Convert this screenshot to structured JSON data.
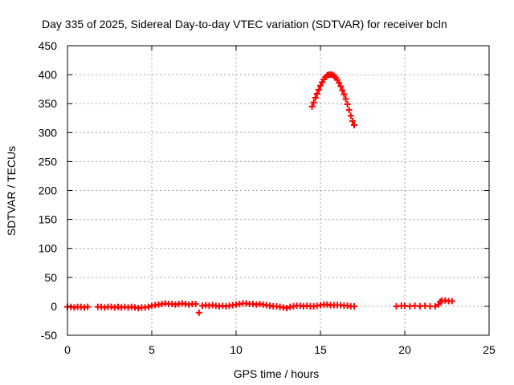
{
  "chart_data": {
    "type": "scatter",
    "title": "Day 335 of 2025, Sidereal Day-to-day VTEC variation (SDTVAR) for receiver bcln",
    "xlabel": "GPS time / hours",
    "ylabel": "SDTVAR / TECUs",
    "xlim": [
      0,
      25
    ],
    "ylim": [
      -50,
      450
    ],
    "xticks": [
      0,
      5,
      10,
      15,
      20,
      25
    ],
    "yticks": [
      -50,
      0,
      50,
      100,
      150,
      200,
      250,
      300,
      350,
      400,
      450
    ],
    "grid": true,
    "legend": "none",
    "marker": "plus",
    "colors": {
      "series": "#ff0000",
      "axis": "#000000",
      "grid": "#a0a0a0"
    },
    "series": [
      {
        "name": "SDTVAR",
        "points": [
          [
            0.0,
            -1
          ],
          [
            0.2,
            -1
          ],
          [
            0.4,
            -2
          ],
          [
            0.6,
            -1
          ],
          [
            0.8,
            -1
          ],
          [
            1.0,
            -2
          ],
          [
            1.2,
            -1
          ],
          [
            1.8,
            -1
          ],
          [
            2.0,
            -1
          ],
          [
            2.2,
            -2
          ],
          [
            2.4,
            -1
          ],
          [
            2.6,
            -1
          ],
          [
            2.8,
            -2
          ],
          [
            3.0,
            -1
          ],
          [
            3.2,
            -2
          ],
          [
            3.4,
            -1
          ],
          [
            3.6,
            -2
          ],
          [
            3.8,
            -1
          ],
          [
            4.0,
            -2
          ],
          [
            4.2,
            -3
          ],
          [
            4.4,
            -2
          ],
          [
            4.6,
            -2
          ],
          [
            4.8,
            -1
          ],
          [
            5.0,
            1
          ],
          [
            5.2,
            2
          ],
          [
            5.4,
            3
          ],
          [
            5.6,
            4
          ],
          [
            5.8,
            5
          ],
          [
            6.0,
            4
          ],
          [
            6.2,
            4
          ],
          [
            6.4,
            3
          ],
          [
            6.6,
            4
          ],
          [
            6.8,
            5
          ],
          [
            7.0,
            4
          ],
          [
            7.2,
            3
          ],
          [
            7.4,
            4
          ],
          [
            7.6,
            4
          ],
          [
            7.8,
            -11
          ],
          [
            8.0,
            1
          ],
          [
            8.2,
            2
          ],
          [
            8.4,
            1
          ],
          [
            8.6,
            2
          ],
          [
            8.8,
            1
          ],
          [
            9.0,
            0
          ],
          [
            9.2,
            1
          ],
          [
            9.4,
            0
          ],
          [
            9.6,
            1
          ],
          [
            9.8,
            2
          ],
          [
            10.0,
            3
          ],
          [
            10.2,
            4
          ],
          [
            10.4,
            5
          ],
          [
            10.6,
            5
          ],
          [
            10.8,
            4
          ],
          [
            11.0,
            4
          ],
          [
            11.2,
            3
          ],
          [
            11.4,
            4
          ],
          [
            11.6,
            3
          ],
          [
            11.8,
            2
          ],
          [
            12.0,
            1
          ],
          [
            12.2,
            0
          ],
          [
            12.4,
            0
          ],
          [
            12.6,
            -1
          ],
          [
            12.8,
            -2
          ],
          [
            13.0,
            -3
          ],
          [
            13.2,
            -1
          ],
          [
            13.4,
            0
          ],
          [
            13.6,
            1
          ],
          [
            13.8,
            1
          ],
          [
            14.0,
            0
          ],
          [
            14.2,
            1
          ],
          [
            14.4,
            0
          ],
          [
            14.6,
            0
          ],
          [
            14.8,
            1
          ],
          [
            15.0,
            2
          ],
          [
            15.2,
            3
          ],
          [
            15.4,
            3
          ],
          [
            15.6,
            2
          ],
          [
            15.8,
            2
          ],
          [
            16.0,
            2
          ],
          [
            16.2,
            2
          ],
          [
            16.4,
            1
          ],
          [
            16.6,
            1
          ],
          [
            16.8,
            0
          ],
          [
            17.0,
            0
          ],
          [
            19.5,
            0
          ],
          [
            19.8,
            1
          ],
          [
            20.0,
            1
          ],
          [
            20.3,
            0
          ],
          [
            20.6,
            1
          ],
          [
            20.9,
            0
          ],
          [
            21.2,
            1
          ],
          [
            21.5,
            0
          ],
          [
            21.8,
            0
          ],
          [
            22.0,
            3
          ],
          [
            22.1,
            8
          ],
          [
            22.2,
            10
          ],
          [
            22.4,
            10
          ],
          [
            22.6,
            9
          ],
          [
            22.8,
            9
          ],
          [
            14.5,
            345
          ],
          [
            14.6,
            352
          ],
          [
            14.7,
            360
          ],
          [
            14.8,
            367
          ],
          [
            14.9,
            374
          ],
          [
            15.0,
            381
          ],
          [
            15.1,
            387
          ],
          [
            15.2,
            392
          ],
          [
            15.3,
            396
          ],
          [
            15.4,
            399
          ],
          [
            15.5,
            400
          ],
          [
            15.6,
            400
          ],
          [
            15.7,
            400
          ],
          [
            15.8,
            398
          ],
          [
            15.9,
            395
          ],
          [
            16.0,
            391
          ],
          [
            16.1,
            386
          ],
          [
            16.2,
            380
          ],
          [
            16.3,
            373
          ],
          [
            16.4,
            366
          ],
          [
            16.5,
            358
          ],
          [
            16.6,
            349
          ],
          [
            16.7,
            339
          ],
          [
            16.8,
            329
          ],
          [
            16.9,
            320
          ],
          [
            17.0,
            313
          ]
        ]
      }
    ]
  }
}
